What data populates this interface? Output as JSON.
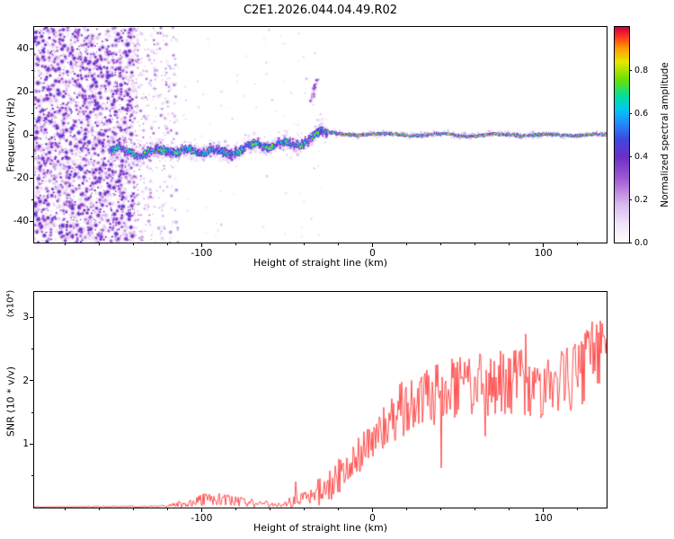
{
  "title": "C2E1.2026.044.04.49.R02",
  "chart_data": [
    {
      "type": "heatmap",
      "title": "",
      "xlabel": "Height of straight line (km)",
      "ylabel": "Frequency (Hz)",
      "xlim": [
        -198,
        137
      ],
      "ylim": [
        -50,
        50
      ],
      "xticks": [
        -100,
        0,
        100
      ],
      "xtick_labels": [
        "-100",
        "0",
        "100"
      ],
      "yticks": [
        40,
        20,
        0,
        -20,
        -40
      ],
      "ytick_labels": [
        "40",
        "20",
        "0",
        "-20",
        "-40"
      ],
      "colorbar": {
        "label": "Normalized spectral amplitude",
        "range": [
          0,
          1
        ],
        "ticks": [
          0.0,
          0.2,
          0.4,
          0.6,
          0.8
        ],
        "tick_labels": [
          "0.0",
          "0.2",
          "0.4",
          "0.6",
          "0.8"
        ]
      },
      "colormap_stops": [
        [
          0.0,
          "#ffffff"
        ],
        [
          0.08,
          "#f2e8fa"
        ],
        [
          0.18,
          "#d9b8ee"
        ],
        [
          0.3,
          "#a05ad2"
        ],
        [
          0.4,
          "#6a30c8"
        ],
        [
          0.48,
          "#4048e0"
        ],
        [
          0.56,
          "#2090ff"
        ],
        [
          0.62,
          "#00c8f0"
        ],
        [
          0.68,
          "#00e0a0"
        ],
        [
          0.76,
          "#70e000"
        ],
        [
          0.84,
          "#e8e800"
        ],
        [
          0.9,
          "#ffa000"
        ],
        [
          0.96,
          "#ff3020"
        ],
        [
          1.0,
          "#d00048"
        ]
      ],
      "signal_track": [
        [
          -153,
          -6
        ],
        [
          -140,
          -7.5
        ],
        [
          -130,
          -9
        ],
        [
          -122,
          -7
        ],
        [
          -112,
          -9
        ],
        [
          -104,
          -7.5
        ],
        [
          -96,
          -6
        ],
        [
          -88,
          -7.5
        ],
        [
          -80,
          -6.5
        ],
        [
          -72,
          -6
        ],
        [
          -64,
          -5
        ],
        [
          -56,
          -5.5
        ],
        [
          -48,
          -4
        ],
        [
          -40,
          -2.5
        ],
        [
          -34,
          0
        ],
        [
          -30,
          2.5
        ],
        [
          -28,
          3
        ],
        [
          -26,
          1
        ],
        [
          -22,
          0.5
        ],
        [
          -10,
          0.3
        ],
        [
          0,
          0.5
        ],
        [
          20,
          0
        ],
        [
          40,
          0.3
        ],
        [
          60,
          -0.2
        ],
        [
          80,
          0.4
        ],
        [
          100,
          0
        ],
        [
          120,
          0.3
        ],
        [
          137,
          0
        ]
      ],
      "noise_region": {
        "x_end": -140,
        "fade_x_end": -114
      },
      "outlier_blob": {
        "x": -34,
        "freq_range": [
          16,
          27
        ]
      },
      "signal_kink_x": -27
    },
    {
      "type": "line",
      "xlabel": "Height of straight line (km)",
      "ylabel": "SNR (10 * v/v)",
      "scale_label": "(x10⁴)",
      "color": "#ff3d3d",
      "xlim": [
        -198,
        137
      ],
      "ylim": [
        0,
        3.4
      ],
      "xticks": [
        -100,
        0,
        100
      ],
      "xtick_labels": [
        "-100",
        "0",
        "100"
      ],
      "yticks": [
        1,
        2,
        3
      ],
      "ytick_labels": [
        "1",
        "2",
        "3"
      ],
      "mean_profile": [
        [
          -198,
          0.01
        ],
        [
          -150,
          0.015
        ],
        [
          -125,
          0.02
        ],
        [
          -112,
          0.05
        ],
        [
          -100,
          0.12
        ],
        [
          -90,
          0.13
        ],
        [
          -80,
          0.1
        ],
        [
          -72,
          0.08
        ],
        [
          -66,
          0.06
        ],
        [
          -55,
          0.05
        ],
        [
          -48,
          0.08
        ],
        [
          -42,
          0.15
        ],
        [
          -38,
          0.12
        ],
        [
          -32,
          0.3
        ],
        [
          -28,
          0.2
        ],
        [
          -24,
          0.35
        ],
        [
          -20,
          0.5
        ],
        [
          -15,
          0.55
        ],
        [
          -10,
          0.8
        ],
        [
          -5,
          0.9
        ],
        [
          0,
          1.1
        ],
        [
          5,
          1.3
        ],
        [
          10,
          1.25
        ],
        [
          15,
          1.5
        ],
        [
          20,
          1.6
        ],
        [
          30,
          1.7
        ],
        [
          40,
          1.85
        ],
        [
          50,
          1.9
        ],
        [
          60,
          2.0
        ],
        [
          70,
          1.9
        ],
        [
          80,
          2.0
        ],
        [
          90,
          1.95
        ],
        [
          100,
          1.9
        ],
        [
          110,
          2.0
        ],
        [
          120,
          2.1
        ],
        [
          130,
          2.4
        ],
        [
          137,
          2.6
        ]
      ],
      "noise_envelope": [
        [
          -198,
          0.005
        ],
        [
          -125,
          0.01
        ],
        [
          -112,
          0.05
        ],
        [
          -100,
          0.1
        ],
        [
          -90,
          0.1
        ],
        [
          -70,
          0.06
        ],
        [
          -55,
          0.04
        ],
        [
          -45,
          0.1
        ],
        [
          -35,
          0.15
        ],
        [
          -25,
          0.25
        ],
        [
          -15,
          0.3
        ],
        [
          -5,
          0.35
        ],
        [
          5,
          0.4
        ],
        [
          20,
          0.45
        ],
        [
          40,
          0.5
        ],
        [
          60,
          0.55
        ],
        [
          80,
          0.55
        ],
        [
          100,
          0.5
        ],
        [
          120,
          0.55
        ],
        [
          137,
          0.6
        ]
      ],
      "spike_probability": 0.03,
      "spike_scale": 2.2,
      "dip_probability": 0.015,
      "dip_scale": 2.5
    }
  ]
}
